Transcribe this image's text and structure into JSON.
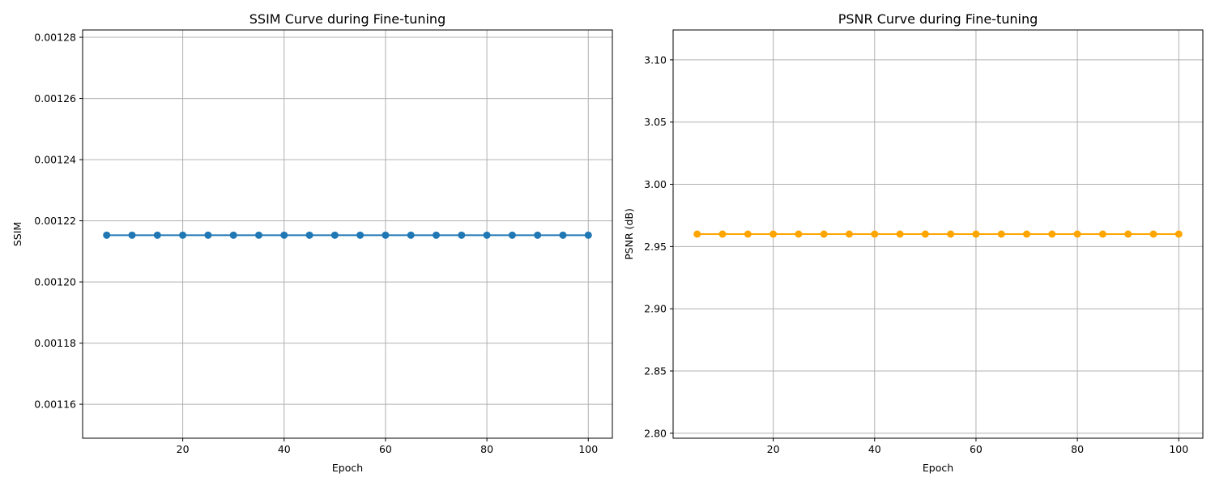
{
  "chart_data": [
    {
      "type": "line",
      "title": "SSIM Curve during Fine-tuning",
      "xlabel": "Epoch",
      "ylabel": "SSIM",
      "x": [
        5,
        10,
        15,
        20,
        25,
        30,
        35,
        40,
        45,
        50,
        55,
        60,
        65,
        70,
        75,
        80,
        85,
        90,
        95,
        100
      ],
      "series": [
        {
          "values": [
            0.0012153,
            0.0012153,
            0.0012153,
            0.0012153,
            0.0012153,
            0.0012153,
            0.0012153,
            0.0012153,
            0.0012153,
            0.0012153,
            0.0012153,
            0.0012153,
            0.0012153,
            0.0012153,
            0.0012153,
            0.0012153,
            0.0012153,
            0.0012153,
            0.0012153,
            0.0012153
          ],
          "color": "#1f77b4"
        }
      ],
      "xlim": [
        0.25,
        104.75
      ],
      "ylim": [
        0.0011489,
        0.0012824
      ],
      "xticks": [
        20,
        40,
        60,
        80,
        100
      ],
      "xtick_labels": [
        "20",
        "40",
        "60",
        "80",
        "100"
      ],
      "yticks": [
        0.00116,
        0.00118,
        0.0012,
        0.00122,
        0.00124,
        0.00126,
        0.00128
      ],
      "ytick_labels": [
        "0.00116",
        "0.00118",
        "0.00120",
        "0.00122",
        "0.00124",
        "0.00126",
        "0.00128"
      ],
      "grid": true
    },
    {
      "type": "line",
      "title": "PSNR Curve during Fine-tuning",
      "xlabel": "Epoch",
      "ylabel": "PSNR (dB)",
      "x": [
        5,
        10,
        15,
        20,
        25,
        30,
        35,
        40,
        45,
        50,
        55,
        60,
        65,
        70,
        75,
        80,
        85,
        90,
        95,
        100
      ],
      "series": [
        {
          "values": [
            2.96,
            2.96,
            2.96,
            2.96,
            2.96,
            2.96,
            2.96,
            2.96,
            2.96,
            2.96,
            2.96,
            2.96,
            2.96,
            2.96,
            2.96,
            2.96,
            2.96,
            2.96,
            2.96,
            2.96
          ],
          "color": "#ffa500"
        }
      ],
      "xlim": [
        0.25,
        104.75
      ],
      "ylim": [
        2.796,
        3.124
      ],
      "xticks": [
        20,
        40,
        60,
        80,
        100
      ],
      "xtick_labels": [
        "20",
        "40",
        "60",
        "80",
        "100"
      ],
      "yticks": [
        2.8,
        2.85,
        2.9,
        2.95,
        3.0,
        3.05,
        3.1
      ],
      "ytick_labels": [
        "2.80",
        "2.85",
        "2.90",
        "2.95",
        "3.00",
        "3.05",
        "3.10"
      ],
      "grid": true
    }
  ]
}
